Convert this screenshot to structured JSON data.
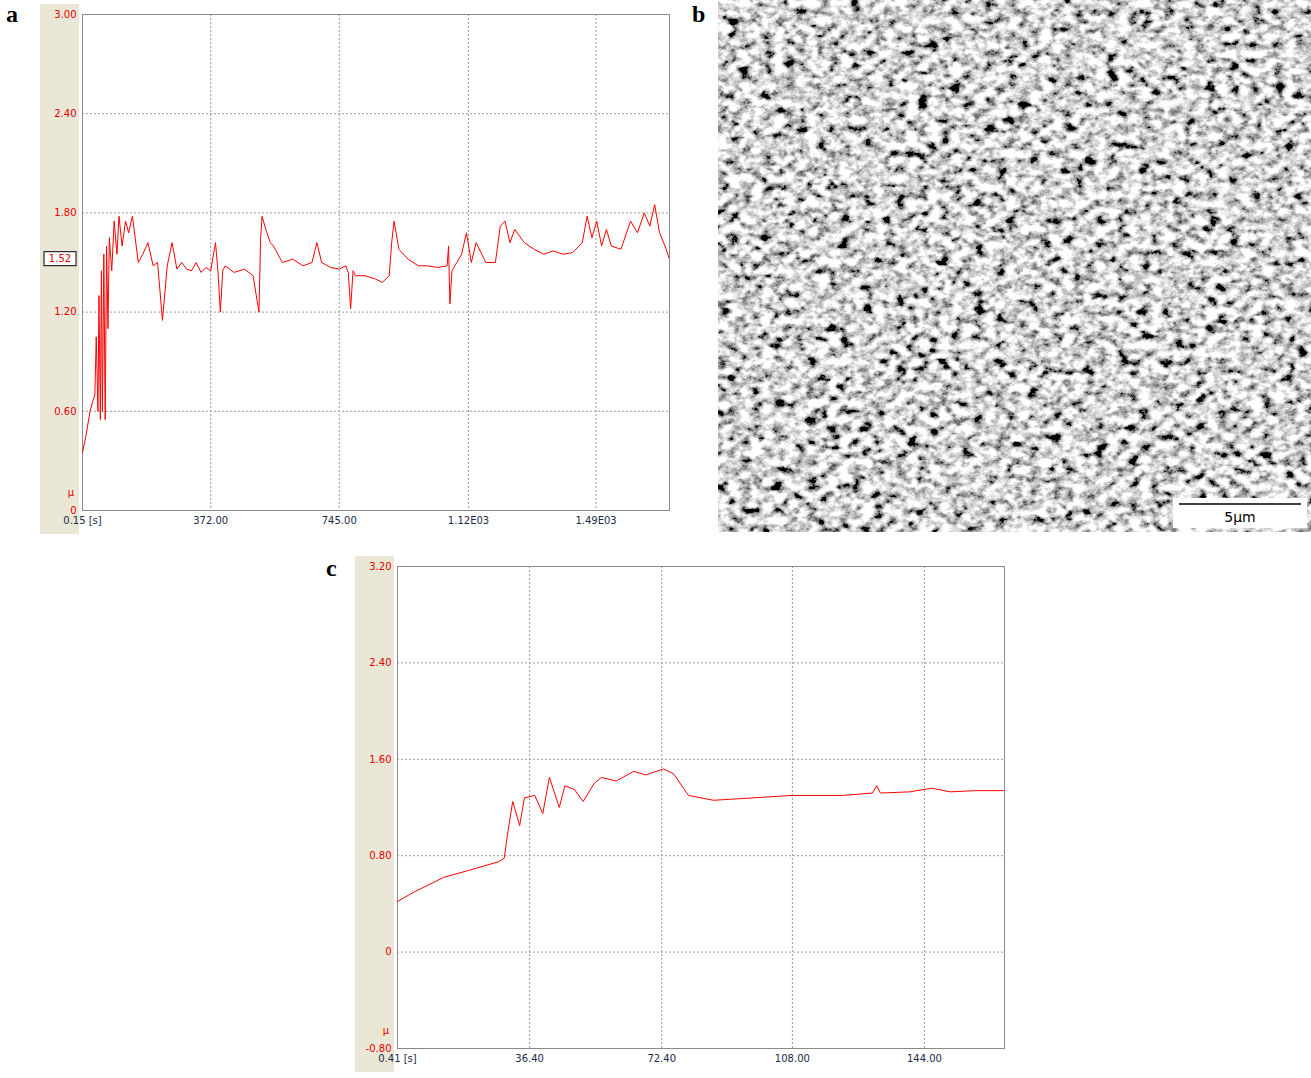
{
  "chart_data": [
    {
      "panel": "a",
      "type": "line",
      "color": "#ff0000",
      "grid": true,
      "y_label": "μ",
      "xlim": [
        0.15,
        1703
      ],
      "ylim": [
        0,
        3
      ],
      "xticks": [
        {
          "value": 0.15,
          "label": "0.15 [s]"
        },
        {
          "value": 372,
          "label": "372.00"
        },
        {
          "value": 745,
          "label": "745.00"
        },
        {
          "value": 1120,
          "label": "1.12E03"
        },
        {
          "value": 1490,
          "label": "1.49E03"
        }
      ],
      "yticks": [
        0,
        {
          "value": 0.6,
          "label": "0.60"
        },
        {
          "value": 1.2,
          "label": "1.20"
        },
        {
          "value": 1.8,
          "label": "1.80"
        },
        {
          "value": 2.4,
          "label": "2.40"
        },
        {
          "value": 3,
          "label": "3.00"
        }
      ],
      "annotations": [
        {
          "text": "1.52",
          "y": 1.52
        }
      ],
      "x": [
        0.15,
        10,
        22,
        30,
        36,
        40,
        45,
        48,
        52,
        55,
        58,
        62,
        66,
        70,
        74,
        78,
        85,
        92,
        100,
        106,
        115,
        125,
        134,
        145,
        162,
        175,
        190,
        205,
        218,
        232,
        246,
        260,
        274,
        288,
        302,
        316,
        330,
        344,
        358,
        372,
        386,
        393,
        400,
        407,
        414,
        440,
        470,
        495,
        512,
        517,
        521,
        532,
        545,
        554,
        580,
        610,
        640,
        666,
        680,
        694,
        720,
        745,
        764,
        771,
        778,
        785,
        792,
        820,
        850,
        870,
        890,
        897,
        904,
        918,
        945,
        974,
        1000,
        1030,
        1058,
        1062,
        1066,
        1072,
        1086,
        1100,
        1114,
        1128,
        1142,
        1170,
        1198,
        1212,
        1226,
        1240,
        1254,
        1282,
        1310,
        1338,
        1366,
        1394,
        1422,
        1450,
        1464,
        1478,
        1492,
        1506,
        1520,
        1534,
        1562,
        1590,
        1610,
        1630,
        1646,
        1660,
        1674,
        1690,
        1703
      ],
      "values": [
        0.35,
        0.45,
        0.6,
        0.66,
        0.7,
        1.05,
        0.6,
        1.3,
        0.55,
        1.45,
        0.6,
        1.55,
        0.55,
        1.6,
        1.1,
        1.65,
        1.45,
        1.75,
        1.55,
        1.78,
        1.6,
        1.75,
        1.68,
        1.78,
        1.5,
        1.55,
        1.62,
        1.48,
        1.5,
        1.15,
        1.48,
        1.62,
        1.46,
        1.5,
        1.46,
        1.45,
        1.5,
        1.44,
        1.47,
        1.45,
        1.62,
        1.45,
        1.2,
        1.45,
        1.48,
        1.44,
        1.46,
        1.42,
        1.2,
        1.65,
        1.78,
        1.7,
        1.62,
        1.6,
        1.5,
        1.52,
        1.48,
        1.5,
        1.62,
        1.5,
        1.47,
        1.46,
        1.48,
        1.44,
        1.22,
        1.45,
        1.42,
        1.42,
        1.4,
        1.38,
        1.42,
        1.62,
        1.75,
        1.58,
        1.52,
        1.48,
        1.48,
        1.47,
        1.48,
        1.6,
        1.25,
        1.45,
        1.5,
        1.55,
        1.68,
        1.5,
        1.62,
        1.5,
        1.5,
        1.72,
        1.75,
        1.62,
        1.7,
        1.62,
        1.58,
        1.55,
        1.57,
        1.55,
        1.56,
        1.62,
        1.78,
        1.65,
        1.75,
        1.6,
        1.7,
        1.6,
        1.58,
        1.75,
        1.68,
        1.8,
        1.72,
        1.85,
        1.68,
        1.6,
        1.52
      ]
    },
    {
      "panel": "c",
      "type": "line",
      "color": "#ff0000",
      "grid": true,
      "y_label": "μ",
      "xlim": [
        0.41,
        165.8
      ],
      "ylim": [
        -0.8,
        3.2
      ],
      "xticks": [
        {
          "value": 0.41,
          "label": "0.41 [s]"
        },
        {
          "value": 36.4,
          "label": "36.40"
        },
        {
          "value": 72.4,
          "label": "72.40"
        },
        {
          "value": 108,
          "label": "108.00"
        },
        {
          "value": 144,
          "label": "144.00"
        }
      ],
      "yticks": [
        {
          "value": -0.8,
          "label": "-0.80"
        },
        0,
        {
          "value": 0.8,
          "label": "0.80"
        },
        {
          "value": 1.6,
          "label": "1.60"
        },
        {
          "value": 2.4,
          "label": "2.40"
        },
        {
          "value": 3.2,
          "label": "3.20"
        }
      ],
      "x": [
        0.41,
        5,
        13,
        20,
        28,
        29.5,
        30.5,
        31.8,
        33.7,
        35,
        37.8,
        40,
        41.8,
        44.5,
        46,
        48.6,
        51,
        54,
        56,
        60,
        64.8,
        68,
        72.9,
        75.6,
        79.7,
        86.5,
        97.3,
        108,
        121.7,
        129.8,
        131,
        132,
        140,
        146,
        151,
        158,
        165.8
      ],
      "values": [
        0.42,
        0.5,
        0.62,
        0.68,
        0.75,
        0.78,
        1.0,
        1.25,
        1.05,
        1.28,
        1.3,
        1.15,
        1.45,
        1.2,
        1.38,
        1.35,
        1.25,
        1.4,
        1.45,
        1.42,
        1.5,
        1.47,
        1.52,
        1.48,
        1.3,
        1.26,
        1.28,
        1.3,
        1.3,
        1.32,
        1.38,
        1.32,
        1.33,
        1.36,
        1.33,
        1.34,
        1.34
      ]
    }
  ],
  "image": {
    "panel": "b",
    "type": "micrograph",
    "scale_bar_label": "5μm"
  }
}
